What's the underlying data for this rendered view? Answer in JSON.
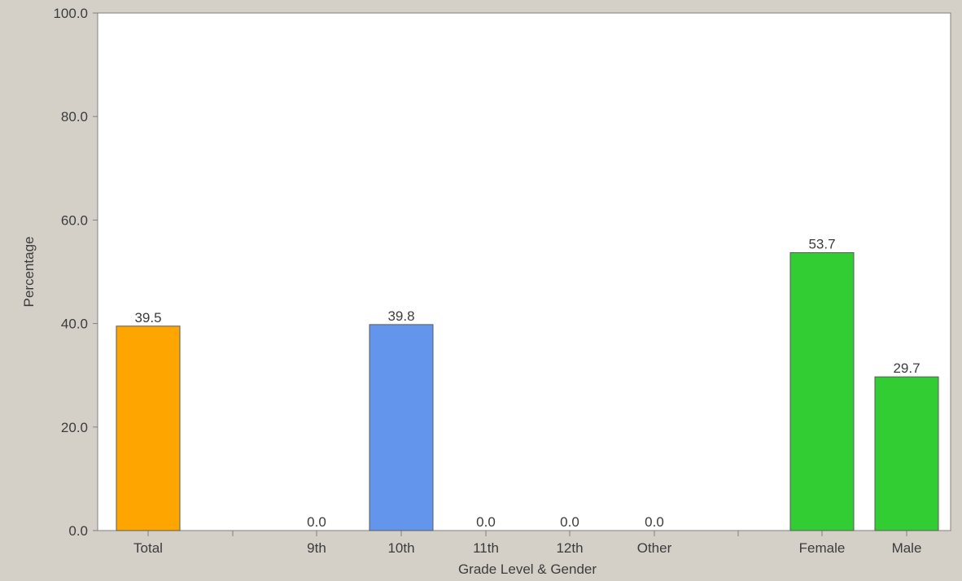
{
  "chart_data": {
    "type": "bar",
    "xlabel": "Grade Level & Gender",
    "ylabel": "Percentage",
    "ylim": [
      0,
      100
    ],
    "yticks": [
      "0.0",
      "20.0",
      "40.0",
      "60.0",
      "80.0",
      "100.0"
    ],
    "grid": false,
    "categories": [
      "Total",
      "9th",
      "10th",
      "11th",
      "12th",
      "Other",
      "Female",
      "Male"
    ],
    "values": [
      39.5,
      0.0,
      39.8,
      0.0,
      0.0,
      0.0,
      53.7,
      29.7
    ],
    "value_labels": [
      "39.5",
      "0.0",
      "39.8",
      "0.0",
      "0.0",
      "0.0",
      "53.7",
      "29.7"
    ],
    "groups": [
      {
        "name": "total",
        "categories": [
          "Total"
        ],
        "color": "#ffa500"
      },
      {
        "name": "grade",
        "categories": [
          "9th",
          "10th",
          "11th",
          "12th",
          "Other"
        ],
        "color": "#6495ed"
      },
      {
        "name": "gender",
        "categories": [
          "Female",
          "Male"
        ],
        "color": "#32cd32"
      }
    ]
  }
}
